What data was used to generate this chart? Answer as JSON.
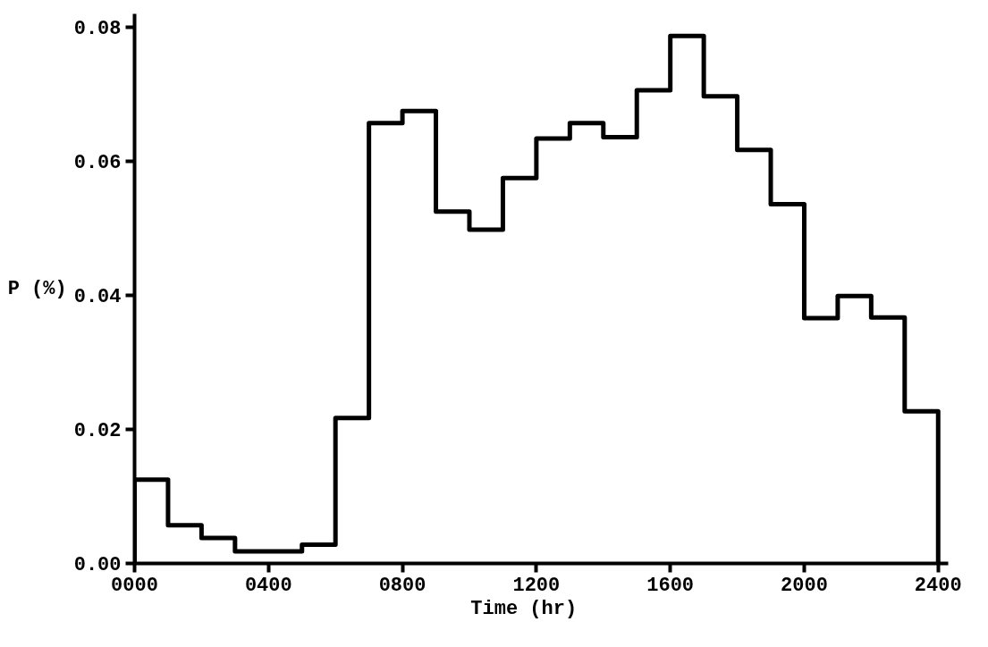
{
  "chart_data": {
    "type": "histogram",
    "xlabel": "Time    (hr)",
    "ylabel": "P (%)",
    "bins": [
      0,
      100,
      200,
      300,
      400,
      500,
      600,
      700,
      800,
      900,
      1000,
      1100,
      1200,
      1300,
      1400,
      1500,
      1600,
      1700,
      1800,
      1900,
      2000,
      2100,
      2200,
      2300,
      2400
    ],
    "values": [
      0.0125,
      0.0057,
      0.0038,
      0.0018,
      0.0018,
      0.0028,
      0.0217,
      0.0657,
      0.0675,
      0.0525,
      0.0498,
      0.0575,
      0.0634,
      0.0657,
      0.0636,
      0.0706,
      0.0787,
      0.0697,
      0.0617,
      0.0536,
      0.0366,
      0.0399,
      0.0367,
      0.0227
    ],
    "color": "#000000",
    "xlim": [
      0,
      2430
    ],
    "ylim": [
      0,
      0.082
    ],
    "xticks": [
      {
        "value": 0,
        "label": "0000"
      },
      {
        "value": 400,
        "label": "0400"
      },
      {
        "value": 800,
        "label": "0800"
      },
      1200,
      1600,
      2000,
      2400
    ],
    "yticks": [
      {
        "value": 0,
        "label": "0.00"
      },
      {
        "value": 0.02,
        "label": "0.02"
      },
      {
        "value": 0.04,
        "label": "0.04"
      },
      {
        "value": 0.06,
        "label": "0.06"
      },
      {
        "value": 0.08,
        "label": "0.08"
      }
    ],
    "grid": false
  }
}
